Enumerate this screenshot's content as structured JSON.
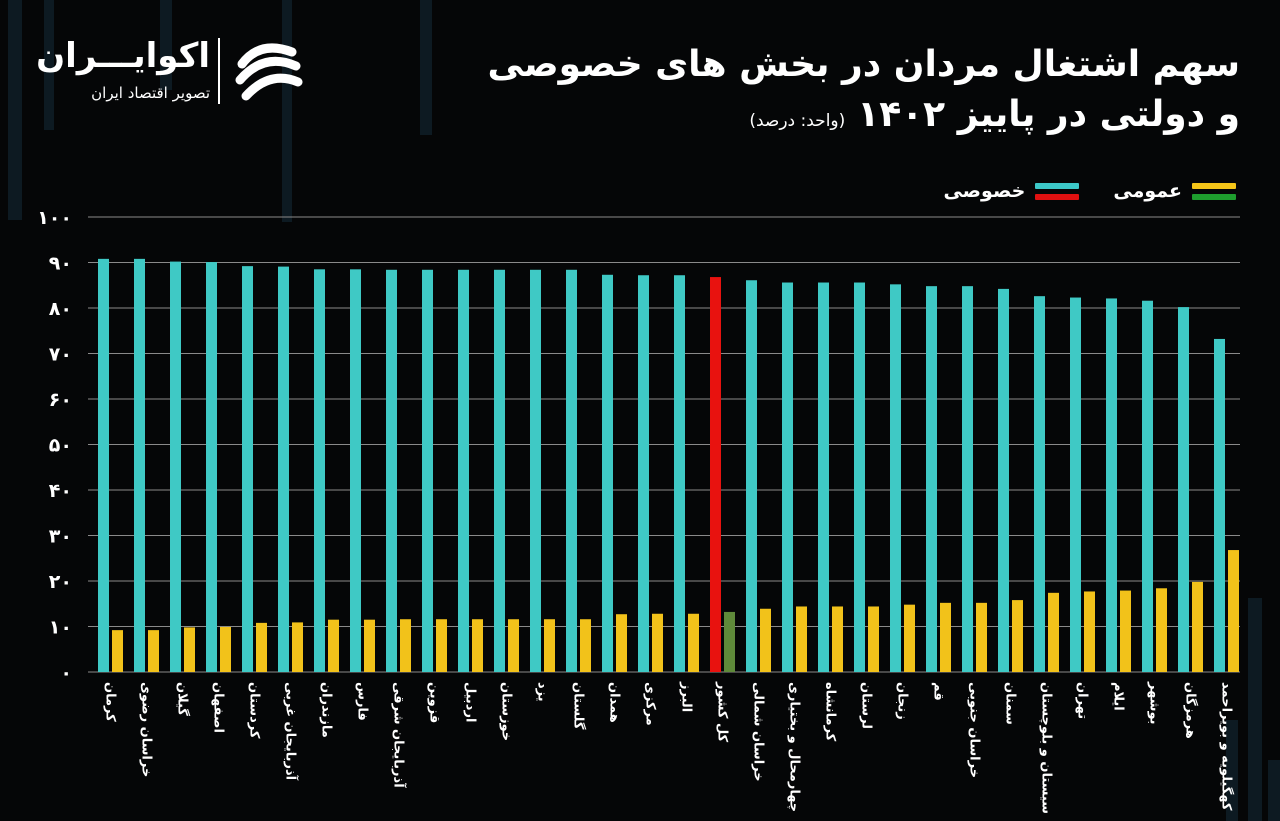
{
  "header": {
    "title_line1": "سهم اشتغال مردان در بخش های خصوصی",
    "title_line2": "و دولتی در پاییز ۱۴۰۲",
    "unit": "(واحد: درصد)"
  },
  "logo": {
    "name": "اکوایـــران",
    "subtitle": "تصویر اقتصاد ایران"
  },
  "legend": [
    {
      "label": "عمومی",
      "colors": [
        "#f5c518",
        "#1e9e2e"
      ]
    },
    {
      "label": "خصوصی",
      "colors": [
        "#3cc8c8",
        "#e01010"
      ]
    }
  ],
  "colors": {
    "private": "#3fc9c5",
    "public": "#f2c21a",
    "national_private": "#e8120f",
    "national_public": "#5f8a3a",
    "grid": "#8a8a8a"
  },
  "chart_data": {
    "type": "bar",
    "title": "سهم اشتغال مردان در بخش های خصوصی و دولتی در پاییز ۱۴۰۲",
    "ylabel": "",
    "xlabel": "",
    "ylim": [
      0,
      100
    ],
    "yticks": [
      "۰",
      "۱۰",
      "۲۰",
      "۳۰",
      "۴۰",
      "۵۰",
      "۶۰",
      "۷۰",
      "۸۰",
      "۹۰",
      "۱۰۰"
    ],
    "grid": true,
    "legend_position": "top-right",
    "highlight_category": "کل کشور",
    "categories": [
      "کرمان",
      "خراسان رضوی",
      "گیلان",
      "اصفهان",
      "کردستان",
      "آذربایجان غربی",
      "مازندران",
      "فارس",
      "آذربایجان شرقی",
      "قزوین",
      "اردبیل",
      "خوزستان",
      "یزد",
      "گلستان",
      "همدان",
      "مرکزی",
      "البرز",
      "کل کشور",
      "خراسان شمالی",
      "چهارمحال و بختیاری",
      "کرمانشاه",
      "لرستان",
      "زنجان",
      "قم",
      "خراسان جنوبی",
      "سمنان",
      "سیستان و بلوچستان",
      "تهران",
      "ایلام",
      "بوشهر",
      "هرمزگان",
      "کهگیلویه و بویراحمد"
    ],
    "series": [
      {
        "name": "خصوصی",
        "values": [
          90.8,
          90.8,
          90.2,
          90.1,
          89.2,
          89.1,
          88.5,
          88.5,
          88.4,
          88.4,
          88.4,
          88.4,
          88.4,
          88.4,
          87.3,
          87.2,
          87.2,
          86.8,
          86.1,
          85.6,
          85.6,
          85.6,
          85.2,
          84.8,
          84.8,
          84.2,
          82.6,
          82.3,
          82.1,
          81.6,
          80.2,
          73.2
        ]
      },
      {
        "name": "عمومی",
        "values": [
          9.2,
          9.2,
          9.8,
          9.9,
          10.8,
          10.9,
          11.5,
          11.5,
          11.6,
          11.6,
          11.6,
          11.6,
          11.6,
          11.6,
          12.7,
          12.8,
          12.8,
          13.2,
          13.9,
          14.4,
          14.4,
          14.4,
          14.8,
          15.2,
          15.2,
          15.8,
          17.4,
          17.7,
          17.9,
          18.4,
          19.8,
          26.8
        ]
      }
    ]
  }
}
